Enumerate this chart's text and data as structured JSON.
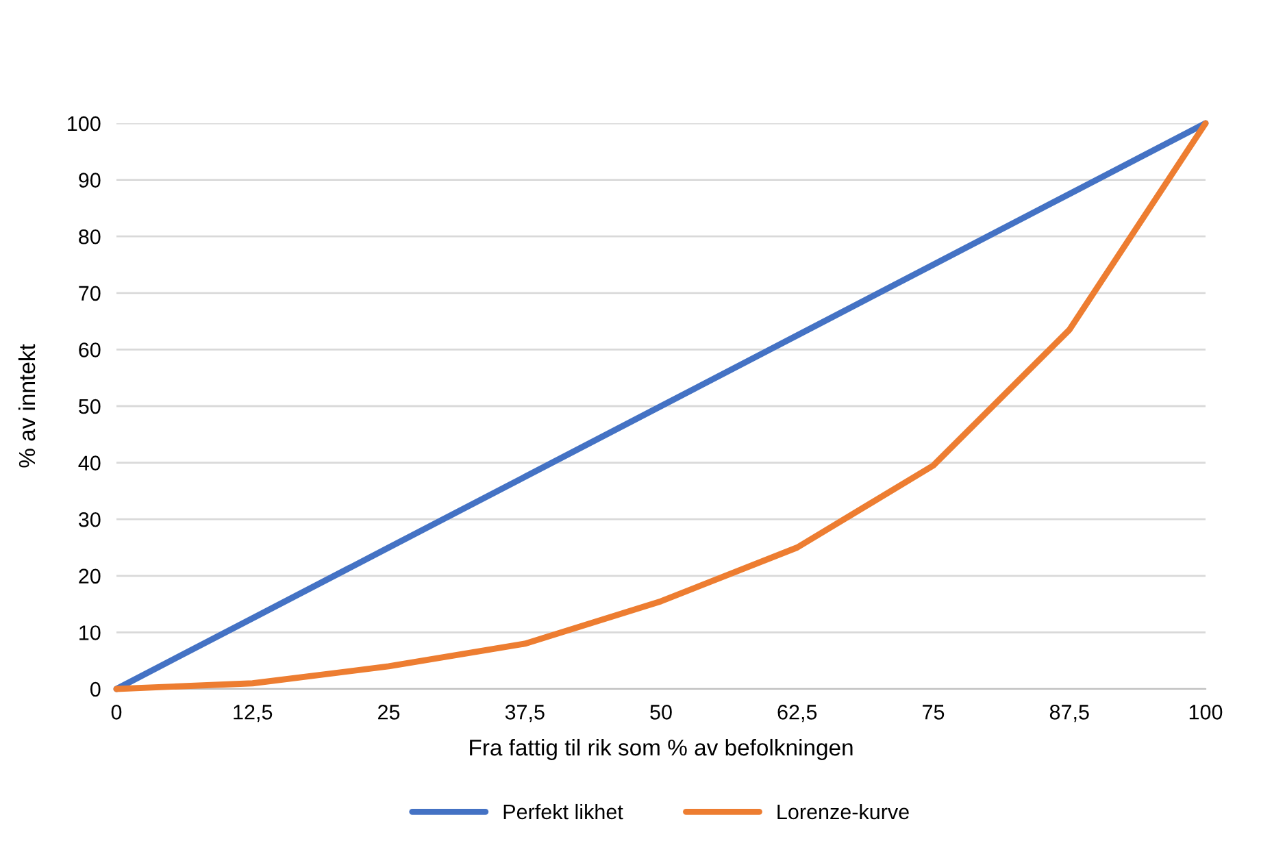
{
  "chart_data": {
    "type": "line",
    "xlabel": "Fra fattig til rik som % av befolkningen",
    "ylabel": "% av inntekt",
    "categories": [
      "0",
      "12,5",
      "25",
      "37,5",
      "50",
      "62,5",
      "75",
      "87,5",
      "100"
    ],
    "series": [
      {
        "name": "Perfekt likhet",
        "color": "#4472c4",
        "values": [
          0,
          12.5,
          25,
          37.5,
          50,
          62.5,
          75,
          87.5,
          100
        ]
      },
      {
        "name": "Lorenze-kurve",
        "color": "#ed7d31",
        "values": [
          0,
          1,
          4,
          8,
          15.5,
          25,
          39.5,
          63.5,
          100
        ]
      }
    ],
    "ylim": [
      0,
      100
    ],
    "yticks": [
      0,
      10,
      20,
      30,
      40,
      50,
      60,
      70,
      80,
      90,
      100
    ],
    "grid": "y",
    "legend": "bottom",
    "line_style": "solid",
    "marker": "none"
  }
}
